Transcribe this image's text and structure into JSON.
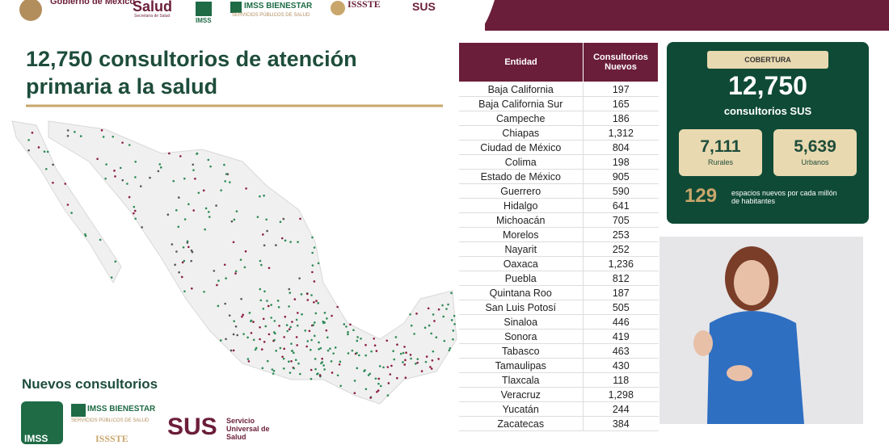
{
  "header": {
    "gobierno": "Gobierno de México",
    "salud": "Salud",
    "salud_sub": "Secretaría de Salud",
    "imss": "IMSS",
    "bienestar": "IMSS BIENESTAR",
    "bienestar_sub": "SERVICIOS PÚBLICOS DE SALUD",
    "issste": "ISSSTE",
    "sus": "SUS"
  },
  "title": "12,750 consultorios de atención primaria a la salud",
  "table": {
    "headers": [
      "Entidad",
      "Consultorios Nuevos"
    ],
    "rows": [
      [
        "Baja California",
        "197"
      ],
      [
        "Baja California Sur",
        "165"
      ],
      [
        "Campeche",
        "186"
      ],
      [
        "Chiapas",
        "1,312"
      ],
      [
        "Ciudad de México",
        "804"
      ],
      [
        "Colima",
        "198"
      ],
      [
        "Estado de México",
        "905"
      ],
      [
        "Guerrero",
        "590"
      ],
      [
        "Hidalgo",
        "641"
      ],
      [
        "Michoacán",
        "705"
      ],
      [
        "Morelos",
        "253"
      ],
      [
        "Nayarit",
        "252"
      ],
      [
        "Oaxaca",
        "1,236"
      ],
      [
        "Puebla",
        "812"
      ],
      [
        "Quintana Roo",
        "187"
      ],
      [
        "San Luis Potosí",
        "505"
      ],
      [
        "Sinaloa",
        "446"
      ],
      [
        "Sonora",
        "419"
      ],
      [
        "Tabasco",
        "463"
      ],
      [
        "Tamaulipas",
        "430"
      ],
      [
        "Tlaxcala",
        "118"
      ],
      [
        "Veracruz",
        "1,298"
      ],
      [
        "Yucatán",
        "244"
      ],
      [
        "Zacatecas",
        "384"
      ]
    ]
  },
  "coverage": {
    "label": "COBERTURA",
    "total": "12,750",
    "total_label": "consultorios SUS",
    "rural": "7,111",
    "rural_label": "Rurales",
    "urban": "5,639",
    "urban_label": "Urbanos",
    "ratio": "129",
    "ratio_label": "espacios nuevos por cada millón de habitantes"
  },
  "footer": {
    "title": "Nuevos consultorios",
    "bienestar": "IMSS BIENESTAR",
    "bienestar_sub": "SERVICIOS PÚBLICOS DE SALUD",
    "sus": "SUS",
    "sus_sub": "Servicio Universal de Salud",
    "imss": "IMSS",
    "issste": "ISSSTE"
  }
}
